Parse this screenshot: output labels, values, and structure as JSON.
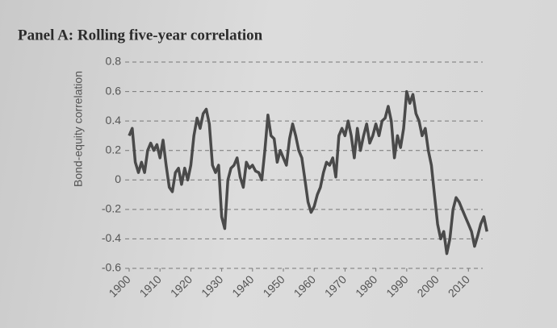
{
  "chart_data": {
    "type": "line",
    "title": "Panel A: Rolling five-year correlation",
    "y_label": "Bond-equity correlation",
    "x": [
      1900,
      1901,
      1902,
      1903,
      1904,
      1905,
      1906,
      1907,
      1908,
      1909,
      1910,
      1911,
      1912,
      1913,
      1914,
      1915,
      1916,
      1917,
      1918,
      1919,
      1920,
      1921,
      1922,
      1923,
      1924,
      1925,
      1926,
      1927,
      1928,
      1929,
      1930,
      1931,
      1932,
      1933,
      1934,
      1935,
      1936,
      1937,
      1938,
      1939,
      1940,
      1941,
      1942,
      1943,
      1944,
      1945,
      1946,
      1947,
      1948,
      1949,
      1950,
      1951,
      1952,
      1953,
      1954,
      1955,
      1956,
      1957,
      1958,
      1959,
      1960,
      1961,
      1962,
      1963,
      1964,
      1965,
      1966,
      1967,
      1968,
      1969,
      1970,
      1971,
      1972,
      1973,
      1974,
      1975,
      1976,
      1977,
      1978,
      1979,
      1980,
      1981,
      1982,
      1983,
      1984,
      1985,
      1986,
      1987,
      1988,
      1989,
      1990,
      1991,
      1992,
      1993,
      1994,
      1995,
      1996,
      1997,
      1998,
      1999,
      2000,
      2001,
      2002,
      2003,
      2004,
      2005,
      2006,
      2007,
      2008,
      2009,
      2010,
      2011,
      2012,
      2013,
      2014,
      2015,
      2016
    ],
    "values": [
      0.3,
      0.35,
      0.12,
      0.05,
      0.12,
      0.05,
      0.2,
      0.25,
      0.2,
      0.24,
      0.15,
      0.27,
      0.1,
      -0.05,
      -0.08,
      0.05,
      0.08,
      -0.03,
      0.08,
      0.0,
      0.1,
      0.3,
      0.42,
      0.35,
      0.45,
      0.48,
      0.38,
      0.1,
      0.05,
      0.1,
      -0.25,
      -0.33,
      0.0,
      0.08,
      0.1,
      0.15,
      0.02,
      -0.05,
      0.12,
      0.08,
      0.1,
      0.06,
      0.05,
      0.0,
      0.2,
      0.44,
      0.3,
      0.28,
      0.12,
      0.2,
      0.15,
      0.1,
      0.28,
      0.38,
      0.3,
      0.2,
      0.15,
      0.0,
      -0.15,
      -0.22,
      -0.18,
      -0.1,
      -0.05,
      0.05,
      0.12,
      0.1,
      0.15,
      0.02,
      0.3,
      0.35,
      0.3,
      0.4,
      0.3,
      0.15,
      0.35,
      0.2,
      0.3,
      0.38,
      0.25,
      0.3,
      0.38,
      0.3,
      0.4,
      0.42,
      0.5,
      0.4,
      0.15,
      0.3,
      0.22,
      0.35,
      0.6,
      0.52,
      0.58,
      0.45,
      0.4,
      0.3,
      0.35,
      0.2,
      0.1,
      -0.1,
      -0.3,
      -0.4,
      -0.35,
      -0.5,
      -0.4,
      -0.2,
      -0.12,
      -0.15,
      -0.2,
      -0.25,
      -0.3,
      -0.35,
      -0.45,
      -0.38,
      -0.3,
      -0.25,
      -0.35
    ],
    "color": "#4a4a4a",
    "xlim": [
      1900,
      2017
    ],
    "xticks": [
      1900,
      1910,
      1920,
      1930,
      1940,
      1950,
      1960,
      1970,
      1980,
      1990,
      2000,
      2010
    ],
    "ylim": [
      -0.6,
      0.8
    ],
    "yticks": [
      0.8,
      0.6,
      0.4,
      0.2,
      0,
      -0.2,
      -0.4,
      -0.6
    ],
    "grid": true
  }
}
